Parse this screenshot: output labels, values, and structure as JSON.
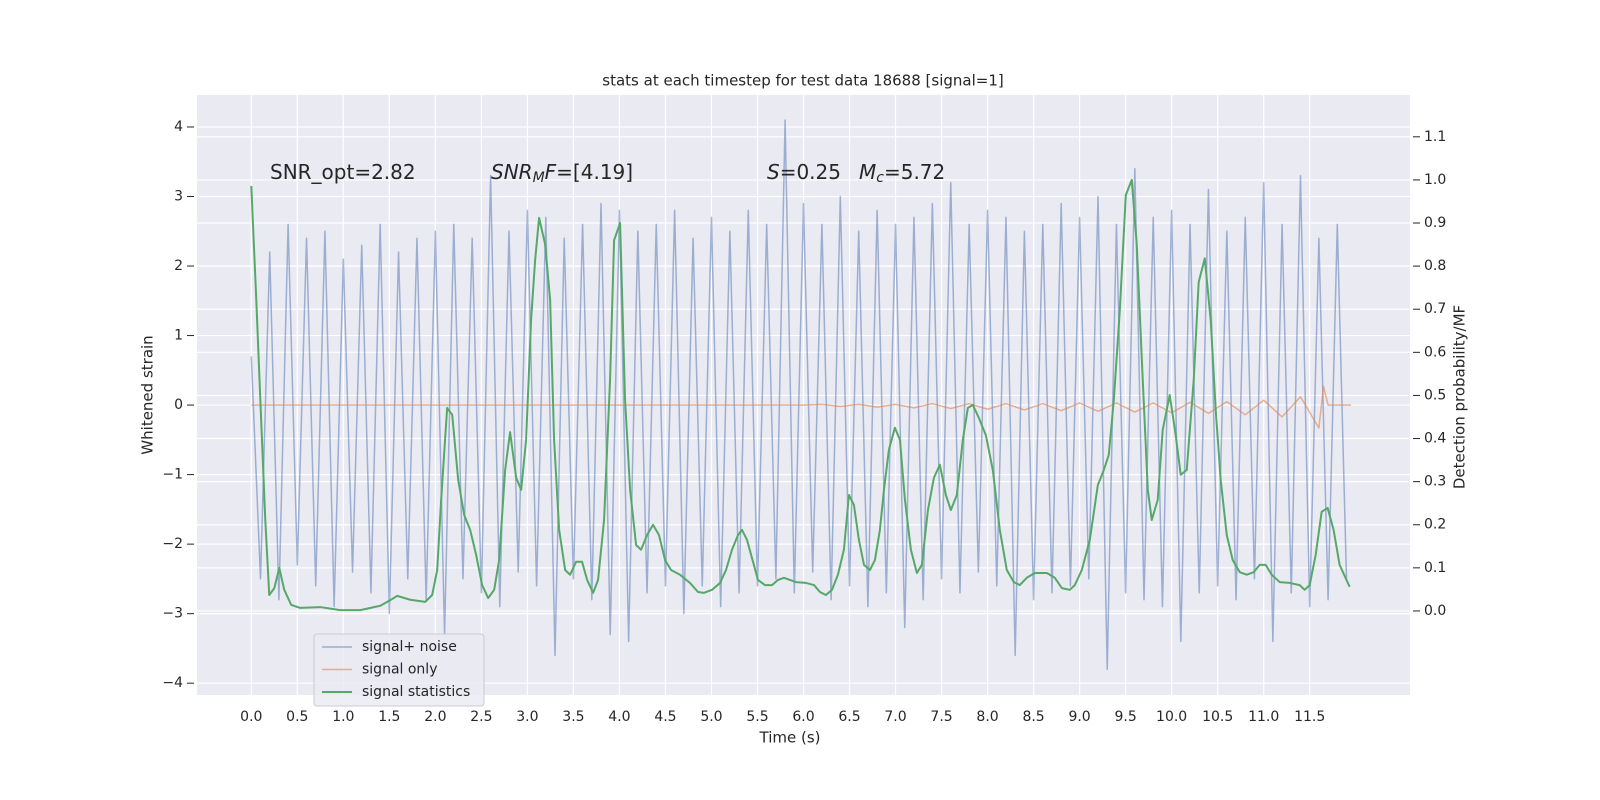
{
  "chart_data": {
    "type": "line",
    "title": "stats at each timestep for test data 18688 [signal=1]",
    "xlabel": "Time (s)",
    "ylabel": "Whitened strain",
    "y2label": "Detection probability/MF",
    "grid": true,
    "legend": "lower left",
    "xlim": [
      -0.59,
      12.59
    ],
    "ylim": [
      -4.17,
      4.46
    ],
    "y2lim": [
      -0.195,
      1.197
    ],
    "xticks": [
      {
        "value": 0,
        "label": "0.0"
      },
      0.5,
      {
        "value": 1,
        "label": "1.0"
      },
      1.5,
      {
        "value": 2,
        "label": "2.0"
      },
      2.5,
      {
        "value": 3,
        "label": "3.0"
      },
      3.5,
      {
        "value": 4,
        "label": "4.0"
      },
      4.5,
      {
        "value": 5,
        "label": "5.0"
      },
      5.5,
      {
        "value": 6,
        "label": "6.0"
      },
      6.5,
      {
        "value": 7,
        "label": "7.0"
      },
      7.5,
      {
        "value": 8,
        "label": "8.0"
      },
      8.5,
      {
        "value": 9,
        "label": "9.0"
      },
      9.5,
      {
        "value": 10,
        "label": "10.0"
      },
      10.5,
      {
        "value": 11,
        "label": "11.0"
      },
      11.5
    ],
    "yticks": [
      {
        "value": -4,
        "label": "−4"
      },
      {
        "value": -3,
        "label": "−3"
      },
      {
        "value": -2,
        "label": "−2"
      },
      {
        "value": -1,
        "label": "−1"
      },
      0,
      1,
      2,
      3,
      4
    ],
    "y2ticks": [
      {
        "value": 0,
        "label": "0.0"
      },
      0.1,
      0.2,
      0.3,
      0.4,
      0.5,
      0.6,
      0.7,
      0.8,
      0.9,
      {
        "value": 1,
        "label": "1.0"
      },
      1.1
    ],
    "annotations": [
      [
        {
          "text": "SNR_opt=2.82"
        }
      ],
      [
        {
          "text": "SNR",
          "style": "italic"
        },
        {
          "text": "M",
          "style": "sub"
        },
        {
          "text": "F",
          "style": "italic"
        },
        {
          "text": "=[4.19]"
        }
      ],
      [
        {
          "text": "S",
          "style": "italic"
        },
        {
          "text": "=0.25"
        },
        {
          "text": "M",
          "style": "italic",
          "gap": true
        },
        {
          "text": "c",
          "style": "sub"
        },
        {
          "text": "=5.72"
        }
      ]
    ],
    "series": [
      {
        "name": "signal+ noise",
        "color": "#4c72b0",
        "opacity": 0.5,
        "x": [
          0.0,
          0.1,
          0.2,
          0.3,
          0.4,
          0.5,
          0.6,
          0.7,
          0.8,
          0.9,
          1.0,
          1.1,
          1.2,
          1.3,
          1.4,
          1.5,
          1.6,
          1.7,
          1.8,
          1.9,
          2.0,
          2.1,
          2.2,
          2.3,
          2.4,
          2.5,
          2.6,
          2.7,
          2.8,
          2.9,
          3.0,
          3.1,
          3.2,
          3.3,
          3.4,
          3.5,
          3.6,
          3.7,
          3.8,
          3.9,
          4.0,
          4.1,
          4.2,
          4.3,
          4.4,
          4.5,
          4.6,
          4.7,
          4.8,
          4.9,
          5.0,
          5.1,
          5.2,
          5.3,
          5.4,
          5.5,
          5.6,
          5.7,
          5.8,
          5.9,
          6.0,
          6.1,
          6.2,
          6.3,
          6.4,
          6.5,
          6.6,
          6.7,
          6.8,
          6.9,
          7.0,
          7.1,
          7.2,
          7.3,
          7.4,
          7.5,
          7.6,
          7.7,
          7.8,
          7.9,
          8.0,
          8.1,
          8.2,
          8.3,
          8.4,
          8.5,
          8.6,
          8.7,
          8.8,
          8.9,
          9.0,
          9.1,
          9.2,
          9.3,
          9.4,
          9.5,
          9.6,
          9.7,
          9.8,
          9.9,
          10.0,
          10.1,
          10.2,
          10.3,
          10.4,
          10.5,
          10.6,
          10.7,
          10.8,
          10.9,
          11.0,
          11.1,
          11.2,
          11.3,
          11.4,
          11.5,
          11.6,
          11.7,
          11.8,
          11.9
        ],
        "values": [
          0.7,
          -2.5,
          2.2,
          -2.8,
          2.6,
          -2.3,
          2.4,
          -2.6,
          2.5,
          -2.9,
          2.1,
          -2.4,
          2.3,
          -2.7,
          2.6,
          -3.0,
          2.2,
          -2.5,
          2.4,
          -2.8,
          2.5,
          -3.3,
          2.6,
          -2.5,
          2.4,
          -2.7,
          3.3,
          -2.9,
          2.5,
          -2.4,
          2.8,
          -2.6,
          2.7,
          -3.6,
          2.4,
          -2.5,
          2.6,
          -2.8,
          2.9,
          -3.3,
          2.8,
          -3.4,
          2.5,
          -2.7,
          2.6,
          -2.6,
          2.8,
          -3.0,
          2.4,
          -2.6,
          2.7,
          -2.9,
          2.5,
          -2.7,
          2.8,
          -2.6,
          2.6,
          -2.5,
          4.1,
          -2.7,
          2.9,
          -2.4,
          2.6,
          -2.8,
          3.0,
          -2.6,
          2.5,
          -2.9,
          2.8,
          -2.7,
          2.6,
          -3.2,
          2.7,
          -2.8,
          2.9,
          -2.5,
          3.2,
          -2.7,
          2.6,
          -2.4,
          2.8,
          -2.6,
          2.7,
          -3.6,
          2.5,
          -2.8,
          2.6,
          -2.7,
          2.9,
          -2.6,
          2.7,
          -2.5,
          3.0,
          -3.8,
          2.6,
          -2.7,
          3.4,
          -2.8,
          2.7,
          -2.9,
          2.8,
          -3.4,
          2.6,
          -2.7,
          3.1,
          -2.6,
          2.5,
          -2.8,
          2.7,
          -2.5,
          3.2,
          -3.4,
          2.6,
          -2.7,
          3.3,
          -2.9,
          2.4,
          -2.8,
          2.6,
          -2.5
        ]
      },
      {
        "name": "signal only",
        "color": "#dd8452",
        "opacity": 0.6,
        "x": [
          0.0,
          6.0,
          6.2,
          6.4,
          6.6,
          6.8,
          7.0,
          7.2,
          7.4,
          7.6,
          7.8,
          8.0,
          8.2,
          8.4,
          8.6,
          8.8,
          9.0,
          9.2,
          9.4,
          9.6,
          9.8,
          10.0,
          10.2,
          10.4,
          10.6,
          10.8,
          11.0,
          11.2,
          11.4,
          11.6,
          11.65,
          11.7,
          11.95
        ],
        "values": [
          0,
          0,
          0.01,
          -0.02,
          0.01,
          -0.03,
          0.01,
          -0.04,
          0.02,
          -0.05,
          0.02,
          -0.06,
          0.02,
          -0.07,
          0.02,
          -0.08,
          0.03,
          -0.09,
          0.03,
          -0.1,
          0.03,
          -0.11,
          0.04,
          -0.12,
          0.05,
          -0.14,
          0.07,
          -0.17,
          0.12,
          -0.33,
          0.27,
          0,
          0
        ]
      },
      {
        "name": "signal statistics",
        "color": "#55a868",
        "axis": "y2",
        "x": [
          0.0,
          0.054,
          0.098,
          0.152,
          0.195,
          0.25,
          0.304,
          0.358,
          0.434,
          0.532,
          0.749,
          0.966,
          1.184,
          1.401,
          1.51,
          1.585,
          1.727,
          1.889,
          1.965,
          2.02,
          2.063,
          2.128,
          2.183,
          2.248,
          2.313,
          2.378,
          2.443,
          2.508,
          2.574,
          2.639,
          2.693,
          2.758,
          2.812,
          2.878,
          2.932,
          2.986,
          3.04,
          3.084,
          3.127,
          3.193,
          3.247,
          3.29,
          3.345,
          3.41,
          3.464,
          3.529,
          3.594,
          3.649,
          3.714,
          3.768,
          3.833,
          3.898,
          3.942,
          4.007,
          4.061,
          4.116,
          4.181,
          4.235,
          4.3,
          4.365,
          4.43,
          4.496,
          4.561,
          4.658,
          4.767,
          4.854,
          4.919,
          5.006,
          5.093,
          5.158,
          5.223,
          5.288,
          5.332,
          5.386,
          5.44,
          5.505,
          5.581,
          5.658,
          5.723,
          5.788,
          5.853,
          5.918,
          6.027,
          6.114,
          6.179,
          6.244,
          6.309,
          6.374,
          6.439,
          6.494,
          6.548,
          6.602,
          6.657,
          6.722,
          6.776,
          6.83,
          6.874,
          6.928,
          6.993,
          7.048,
          7.102,
          7.167,
          7.232,
          7.286,
          7.352,
          7.417,
          7.482,
          7.547,
          7.601,
          7.666,
          7.731,
          7.786,
          7.84,
          7.905,
          7.981,
          8.057,
          8.133,
          8.209,
          8.285,
          8.35,
          8.426,
          8.513,
          8.644,
          8.731,
          8.807,
          8.893,
          8.948,
          9.024,
          9.111,
          9.198,
          9.263,
          9.317,
          9.372,
          9.437,
          9.502,
          9.567,
          9.621,
          9.686,
          9.741,
          9.784,
          9.849,
          9.903,
          9.979,
          10.044,
          10.099,
          10.164,
          10.24,
          10.294,
          10.36,
          10.425,
          10.479,
          10.533,
          10.599,
          10.664,
          10.74,
          10.816,
          10.892,
          10.957,
          11.022,
          11.087,
          11.174,
          11.282,
          11.391,
          11.445,
          11.5,
          11.565,
          11.63,
          11.695,
          11.76,
          11.825,
          11.934
        ],
        "values": [
          0.986,
          0.723,
          0.49,
          0.211,
          0.037,
          0.053,
          0.1,
          0.049,
          0.014,
          0.007,
          0.009,
          0.002,
          0.002,
          0.012,
          0.025,
          0.035,
          0.026,
          0.021,
          0.037,
          0.095,
          0.258,
          0.471,
          0.455,
          0.304,
          0.223,
          0.188,
          0.13,
          0.06,
          0.03,
          0.049,
          0.118,
          0.327,
          0.415,
          0.309,
          0.281,
          0.397,
          0.675,
          0.814,
          0.912,
          0.85,
          0.722,
          0.397,
          0.188,
          0.095,
          0.084,
          0.114,
          0.114,
          0.072,
          0.042,
          0.072,
          0.211,
          0.536,
          0.86,
          0.9,
          0.49,
          0.281,
          0.153,
          0.142,
          0.176,
          0.2,
          0.176,
          0.118,
          0.095,
          0.084,
          0.065,
          0.044,
          0.042,
          0.049,
          0.065,
          0.095,
          0.142,
          0.176,
          0.188,
          0.165,
          0.123,
          0.072,
          0.06,
          0.06,
          0.072,
          0.077,
          0.072,
          0.067,
          0.065,
          0.06,
          0.044,
          0.037,
          0.049,
          0.084,
          0.142,
          0.269,
          0.246,
          0.165,
          0.107,
          0.095,
          0.118,
          0.188,
          0.281,
          0.374,
          0.425,
          0.397,
          0.258,
          0.142,
          0.088,
          0.107,
          0.234,
          0.309,
          0.339,
          0.269,
          0.234,
          0.269,
          0.397,
          0.471,
          0.478,
          0.448,
          0.408,
          0.327,
          0.188,
          0.095,
          0.067,
          0.06,
          0.077,
          0.088,
          0.088,
          0.077,
          0.053,
          0.049,
          0.06,
          0.095,
          0.165,
          0.292,
          0.327,
          0.362,
          0.49,
          0.698,
          0.965,
          1.0,
          0.85,
          0.536,
          0.281,
          0.211,
          0.258,
          0.42,
          0.501,
          0.408,
          0.316,
          0.327,
          0.536,
          0.763,
          0.818,
          0.673,
          0.466,
          0.304,
          0.176,
          0.118,
          0.09,
          0.084,
          0.09,
          0.107,
          0.107,
          0.084,
          0.067,
          0.065,
          0.06,
          0.049,
          0.06,
          0.13,
          0.23,
          0.239,
          0.188,
          0.107,
          0.056
        ]
      }
    ]
  }
}
